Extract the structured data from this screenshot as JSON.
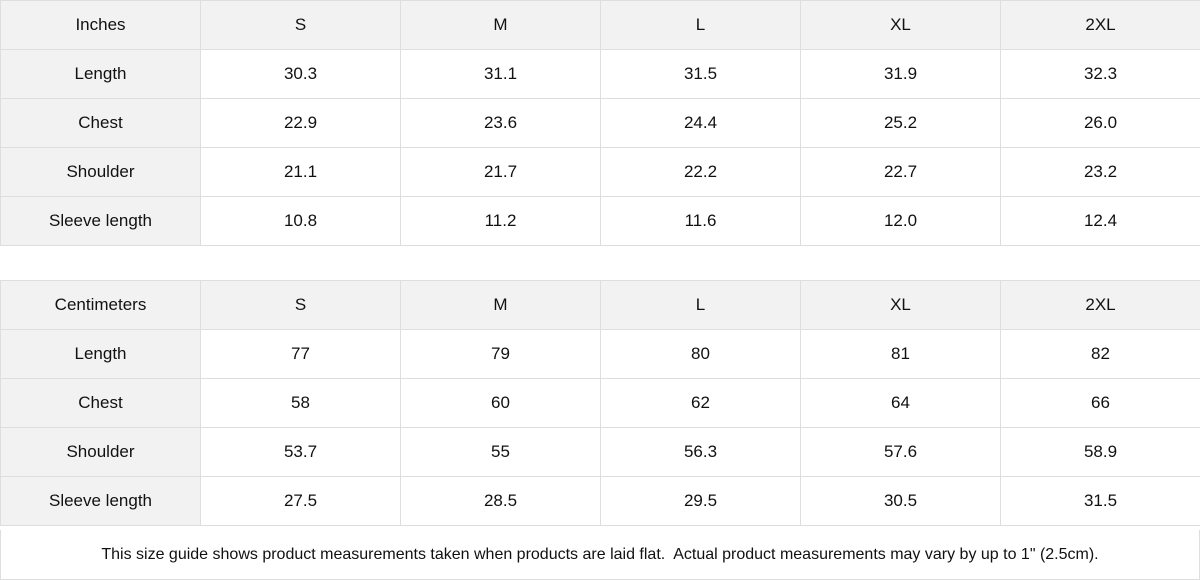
{
  "tables": [
    {
      "header": [
        "Inches",
        "S",
        "M",
        "L",
        "XL",
        "2XL"
      ],
      "rows": [
        [
          "Length",
          "30.3",
          "31.1",
          "31.5",
          "31.9",
          "32.3"
        ],
        [
          "Chest",
          "22.9",
          "23.6",
          "24.4",
          "25.2",
          "26.0"
        ],
        [
          "Shoulder",
          "21.1",
          "21.7",
          "22.2",
          "22.7",
          "23.2"
        ],
        [
          "Sleeve length",
          "10.8",
          "11.2",
          "11.6",
          "12.0",
          "12.4"
        ]
      ]
    },
    {
      "header": [
        "Centimeters",
        "S",
        "M",
        "L",
        "XL",
        "2XL"
      ],
      "rows": [
        [
          "Length",
          "77",
          "79",
          "80",
          "81",
          "82"
        ],
        [
          "Chest",
          "58",
          "60",
          "62",
          "64",
          "66"
        ],
        [
          "Shoulder",
          "53.7",
          "55",
          "56.3",
          "57.6",
          "58.9"
        ],
        [
          "Sleeve length",
          "27.5",
          "28.5",
          "29.5",
          "30.5",
          "31.5"
        ]
      ]
    }
  ],
  "note": "This size guide shows product measurements taken when products are laid flat.  Actual product measurements may vary by up to 1\" (2.5cm).",
  "colors": {
    "header_bg": "#f2f2f2",
    "border": "#dedede"
  }
}
